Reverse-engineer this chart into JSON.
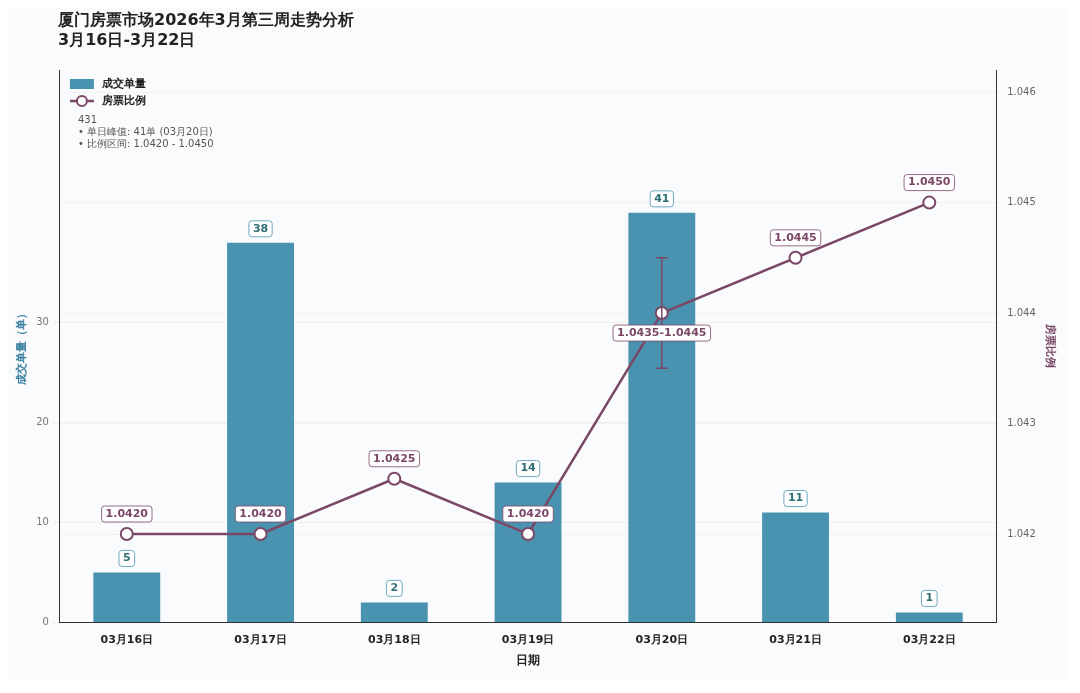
{
  "chart_data": {
    "type": "bar",
    "title": "厦门房票市场2026年3月第三周走势分析",
    "subtitle": "3月16日-3月22日",
    "xlabel": "日期",
    "ylabel": "成交单量（单）",
    "y2label": "房票比例",
    "categories": [
      "03月16日",
      "03月17日",
      "03月18日",
      "03月19日",
      "03月20日",
      "03月21日",
      "03月22日"
    ],
    "series": [
      {
        "name": "成交单量",
        "color": "#4a93b0",
        "values": [
          5,
          38,
          2,
          14,
          41,
          11,
          1
        ]
      },
      {
        "name": "房票比例",
        "type": "line",
        "axis": "y2",
        "color": "#7a4866",
        "marker": "circle",
        "values": [
          1.042,
          1.042,
          1.0425,
          1.042,
          1.044,
          1.0445,
          1.045
        ],
        "errors": [
          null,
          null,
          null,
          null,
          [
            1.0435,
            1.0445
          ],
          null,
          null
        ],
        "value_labels": [
          "1.0420",
          "1.0420",
          "1.0425",
          "1.0420",
          "1.0435-1.0445",
          "1.0445",
          "1.0450"
        ]
      }
    ],
    "ylim": [
      0,
      55.3
    ],
    "yticks": [
      0,
      10,
      20,
      30
    ],
    "y2lim": [
      1.0412,
      1.0462
    ],
    "y2ticks": [
      1.042,
      1.043,
      1.044,
      1.045,
      1.046
    ],
    "grid": "y",
    "legend": "top left",
    "data_labels": true,
    "annotations": [
      "431",
      "• 单日峰值: 41单 (03月20日)",
      "• 比例区间: 1.0420 - 1.0450"
    ]
  }
}
